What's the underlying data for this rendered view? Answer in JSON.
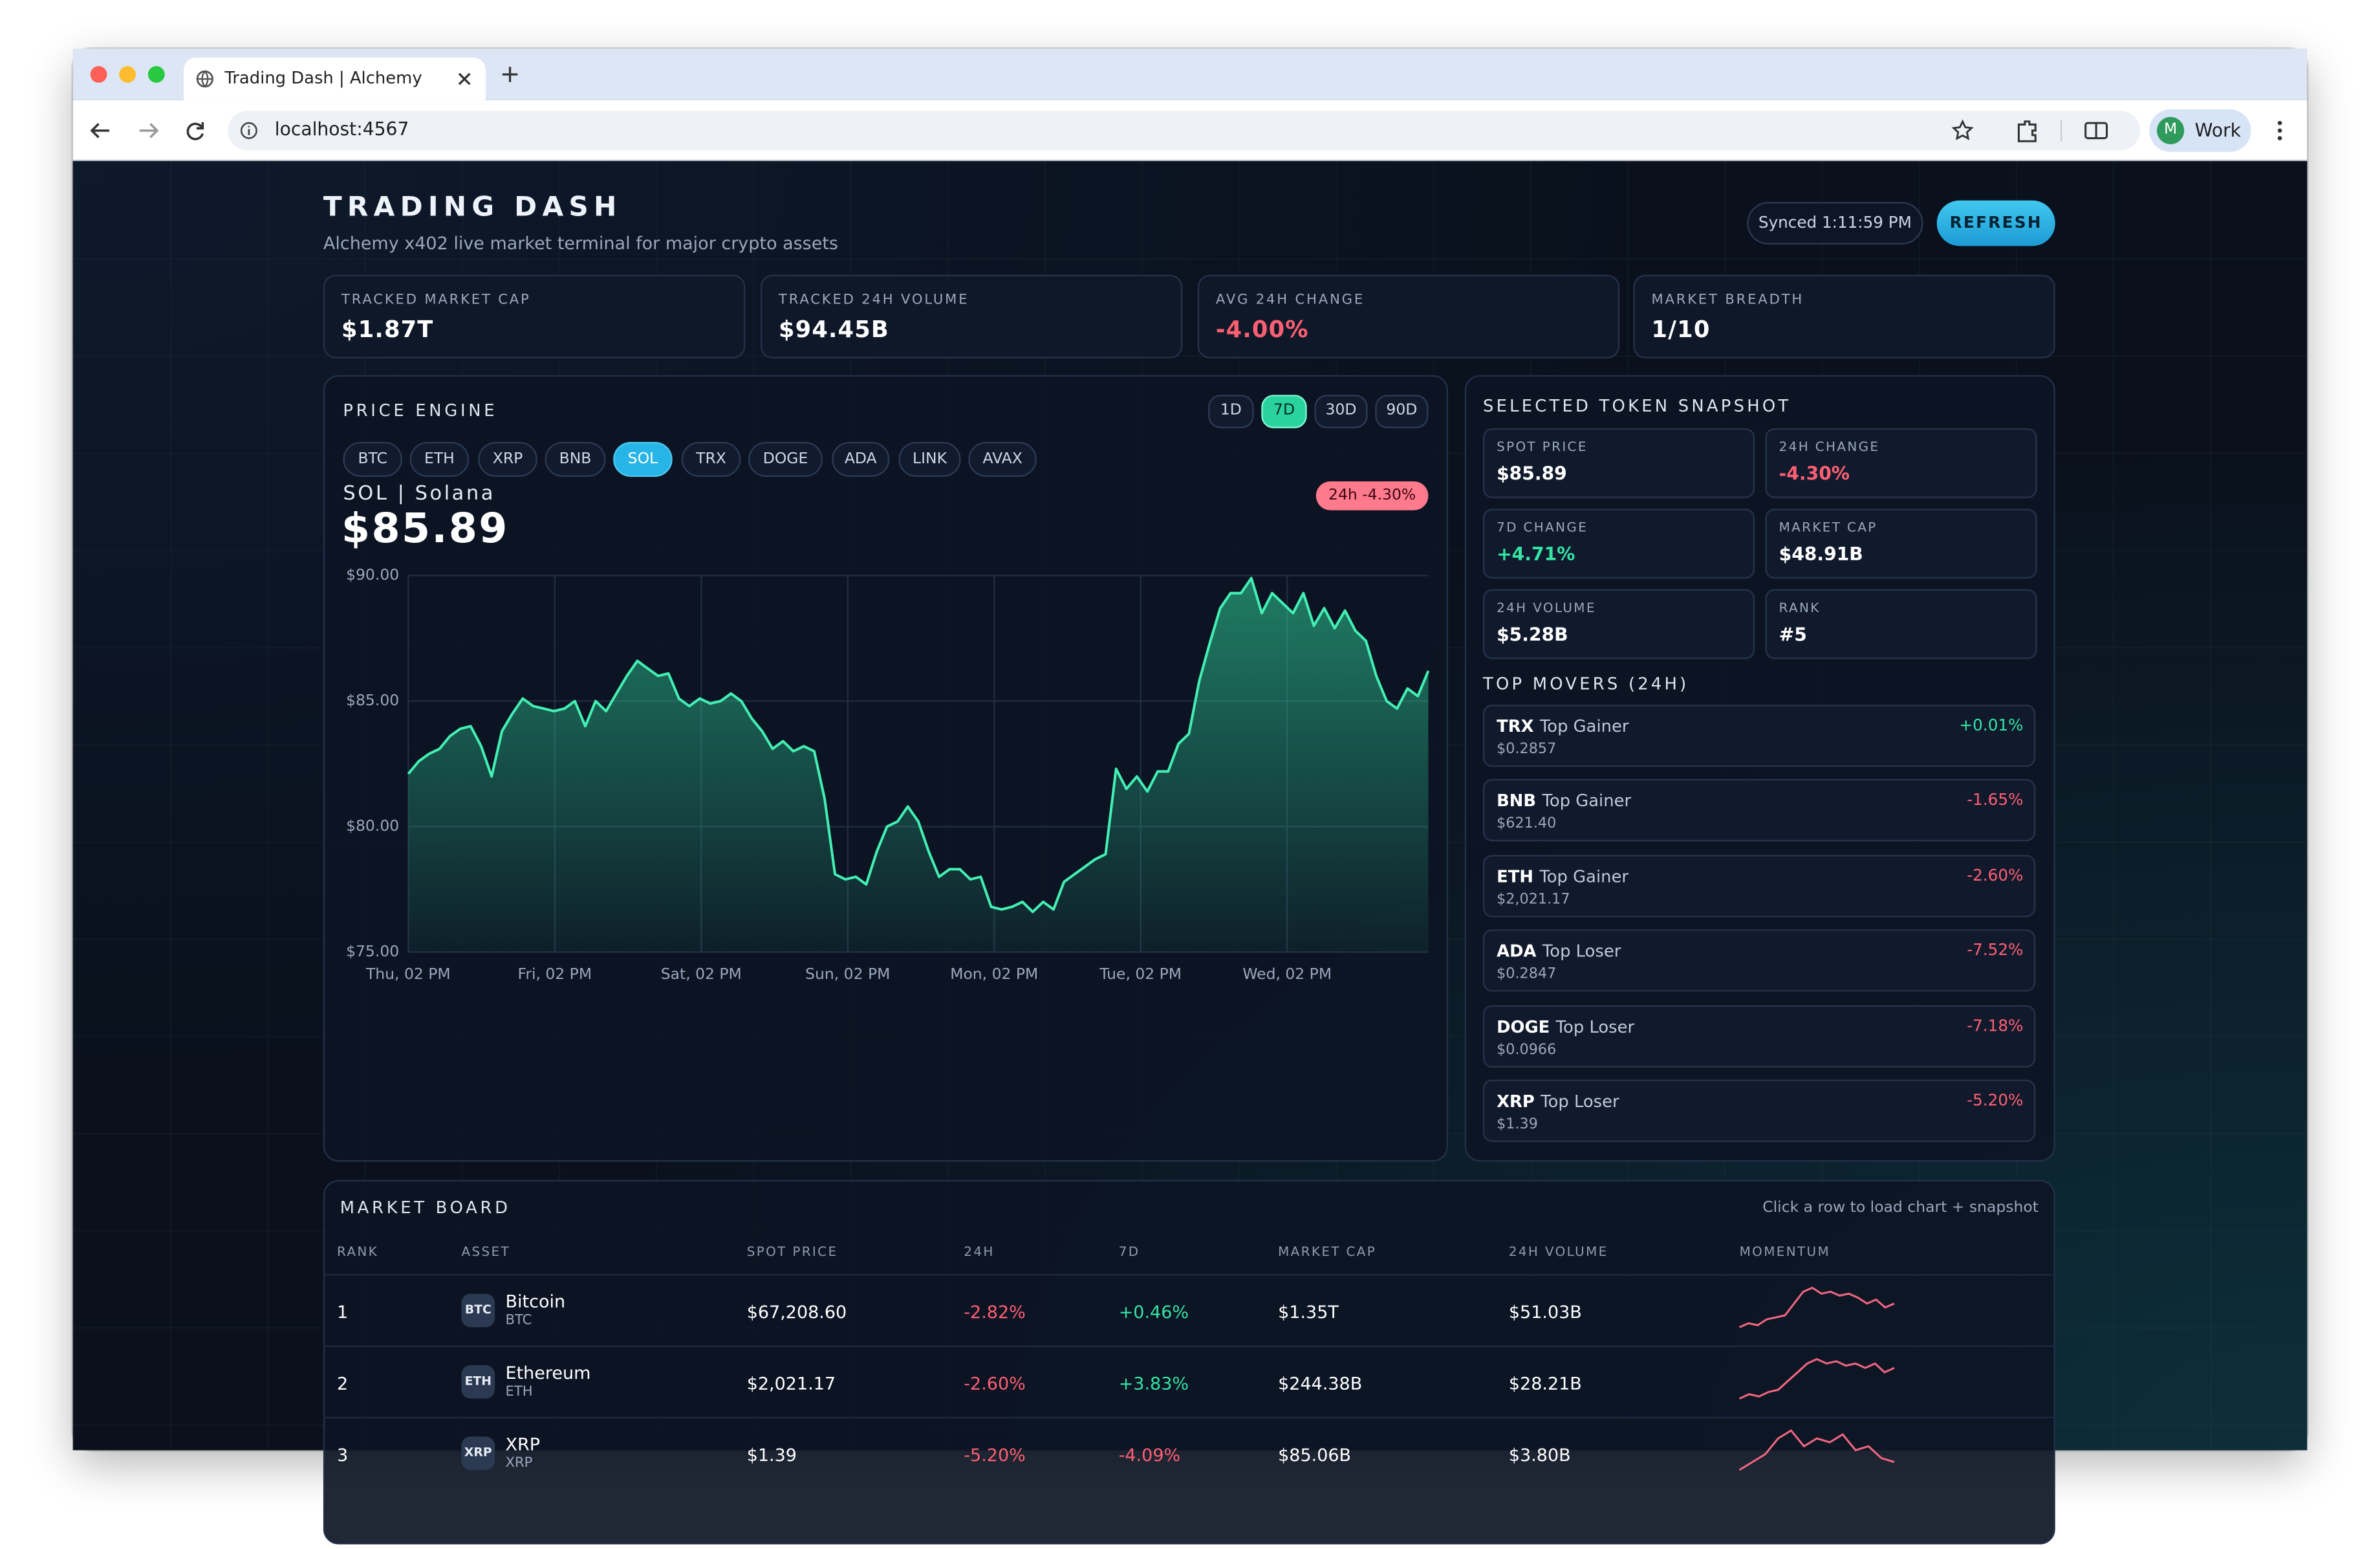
{
  "browser": {
    "tab_title": "Trading Dash | Alchemy",
    "url": "localhost:4567",
    "profile_initial": "M",
    "profile_name": "Work"
  },
  "header": {
    "title": "TRADING DASH",
    "subtitle": "Alchemy x402 live market terminal for major crypto assets",
    "synced": "Synced 1:11:59 PM",
    "refresh": "REFRESH"
  },
  "stats": [
    {
      "label": "TRACKED MARKET CAP",
      "value": "$1.87T"
    },
    {
      "label": "TRACKED 24H VOLUME",
      "value": "$94.45B"
    },
    {
      "label": "AVG 24H CHANGE",
      "value": "-4.00%"
    },
    {
      "label": "MARKET BREADTH",
      "value": "1/10"
    }
  ],
  "price_engine": {
    "title": "PRICE ENGINE",
    "ranges": [
      "1D",
      "7D",
      "30D",
      "90D"
    ],
    "active_range": "7D",
    "tokens": [
      "BTC",
      "ETH",
      "XRP",
      "BNB",
      "SOL",
      "TRX",
      "DOGE",
      "ADA",
      "LINK",
      "AVAX"
    ],
    "active_token": "SOL",
    "token_name": "SOL | Solana",
    "price": "$85.89",
    "change_badge": "24h -4.30%",
    "chart": {
      "type": "line",
      "color": "#43efb3",
      "ylim": [
        75,
        90
      ],
      "yticks": [
        {
          "value": 75,
          "label": "$75.00"
        },
        {
          "value": 80,
          "label": "$80.00"
        },
        {
          "value": 85,
          "label": "$85.00"
        },
        {
          "value": 90,
          "label": "$90.00"
        }
      ],
      "grid": true,
      "xticks": [
        "Thu, 02 PM",
        "Fri, 02 PM",
        "Sat, 02 PM",
        "Sun, 02 PM",
        "Mon, 02 PM",
        "Tue, 02 PM",
        "Wed, 02 PM"
      ],
      "values": [
        82.1,
        82.6,
        82.9,
        83.1,
        83.6,
        83.9,
        84.0,
        83.2,
        82.0,
        83.8,
        84.5,
        85.1,
        84.8,
        84.7,
        84.6,
        84.7,
        85.0,
        84.0,
        85.0,
        84.6,
        85.3,
        86.0,
        86.6,
        86.3,
        86.0,
        86.1,
        85.1,
        84.8,
        85.1,
        84.9,
        85.0,
        85.3,
        85.0,
        84.3,
        83.8,
        83.1,
        83.4,
        83.0,
        83.2,
        83.0,
        81.1,
        78.1,
        77.9,
        78.0,
        77.7,
        79.0,
        80.0,
        80.2,
        80.8,
        80.2,
        79.0,
        78.0,
        78.3,
        78.3,
        77.9,
        78.0,
        76.8,
        76.7,
        76.8,
        77.0,
        76.6,
        77.0,
        76.7,
        77.8,
        78.1,
        78.4,
        78.7,
        78.9,
        82.3,
        81.5,
        82.0,
        81.4,
        82.2,
        82.2,
        83.3,
        83.7,
        85.8,
        87.3,
        88.7,
        89.3,
        89.3,
        89.9,
        88.5,
        89.3,
        88.9,
        88.5,
        89.3,
        88.0,
        88.7,
        87.9,
        88.6,
        87.8,
        87.4,
        86.0,
        85.0,
        84.7,
        85.5,
        85.2,
        86.2
      ]
    }
  },
  "snapshot": {
    "title": "SELECTED TOKEN SNAPSHOT",
    "cells": [
      {
        "label": "SPOT PRICE",
        "value": "$85.89"
      },
      {
        "label": "24H CHANGE",
        "value": "-4.30%"
      },
      {
        "label": "7D CHANGE",
        "value": "+4.71%"
      },
      {
        "label": "MARKET CAP",
        "value": "$48.91B"
      },
      {
        "label": "24H VOLUME",
        "value": "$5.28B"
      },
      {
        "label": "RANK",
        "value": "#5"
      }
    ]
  },
  "movers": {
    "title": "TOP MOVERS (24H)",
    "items": [
      {
        "symbol": "TRX",
        "tag": "Top Gainer",
        "price": "$0.2857",
        "change": "+0.01%"
      },
      {
        "symbol": "BNB",
        "tag": "Top Gainer",
        "price": "$621.40",
        "change": "-1.65%"
      },
      {
        "symbol": "ETH",
        "tag": "Top Gainer",
        "price": "$2,021.17",
        "change": "-2.60%"
      },
      {
        "symbol": "ADA",
        "tag": "Top Loser",
        "price": "$0.2847",
        "change": "-7.52%"
      },
      {
        "symbol": "DOGE",
        "tag": "Top Loser",
        "price": "$0.0966",
        "change": "-7.18%"
      },
      {
        "symbol": "XRP",
        "tag": "Top Loser",
        "price": "$1.39",
        "change": "-5.20%"
      }
    ]
  },
  "market_board": {
    "title": "MARKET BOARD",
    "hint": "Click a row to load chart + snapshot",
    "columns": [
      "RANK",
      "ASSET",
      "SPOT PRICE",
      "24H",
      "7D",
      "MARKET CAP",
      "24H VOLUME",
      "MOMENTUM"
    ],
    "rows": [
      {
        "rank": "1",
        "icon": "BTC",
        "name": "Bitcoin",
        "symbol": "BTC",
        "price": "$67,208.60",
        "change_24h": "-2.82%",
        "change_7d": "+0.46%",
        "market_cap": "$1.35T",
        "volume": "$51.03B",
        "momentum": [
          0,
          1,
          0.5,
          2,
          2.5,
          3,
          6,
          9,
          10,
          8.5,
          9,
          8,
          8.5,
          7.5,
          6,
          7,
          5,
          6
        ]
      },
      {
        "rank": "2",
        "icon": "ETH",
        "name": "Ethereum",
        "symbol": "ETH",
        "price": "$2,021.17",
        "change_24h": "-2.60%",
        "change_7d": "+3.83%",
        "market_cap": "$244.38B",
        "volume": "$28.21B",
        "momentum": [
          1,
          2,
          1.5,
          2.5,
          3,
          5,
          7,
          9,
          10,
          9,
          9.5,
          8.5,
          9,
          8,
          9,
          7,
          8
        ]
      },
      {
        "rank": "3",
        "icon": "XRP",
        "name": "XRP",
        "symbol": "XRP",
        "price": "$1.39",
        "change_24h": "-5.20%",
        "change_7d": "-4.09%",
        "market_cap": "$85.06B",
        "volume": "$3.80B",
        "momentum": [
          0,
          2,
          4,
          8,
          10,
          6,
          8,
          7,
          9,
          5,
          6,
          3,
          2
        ]
      }
    ]
  }
}
